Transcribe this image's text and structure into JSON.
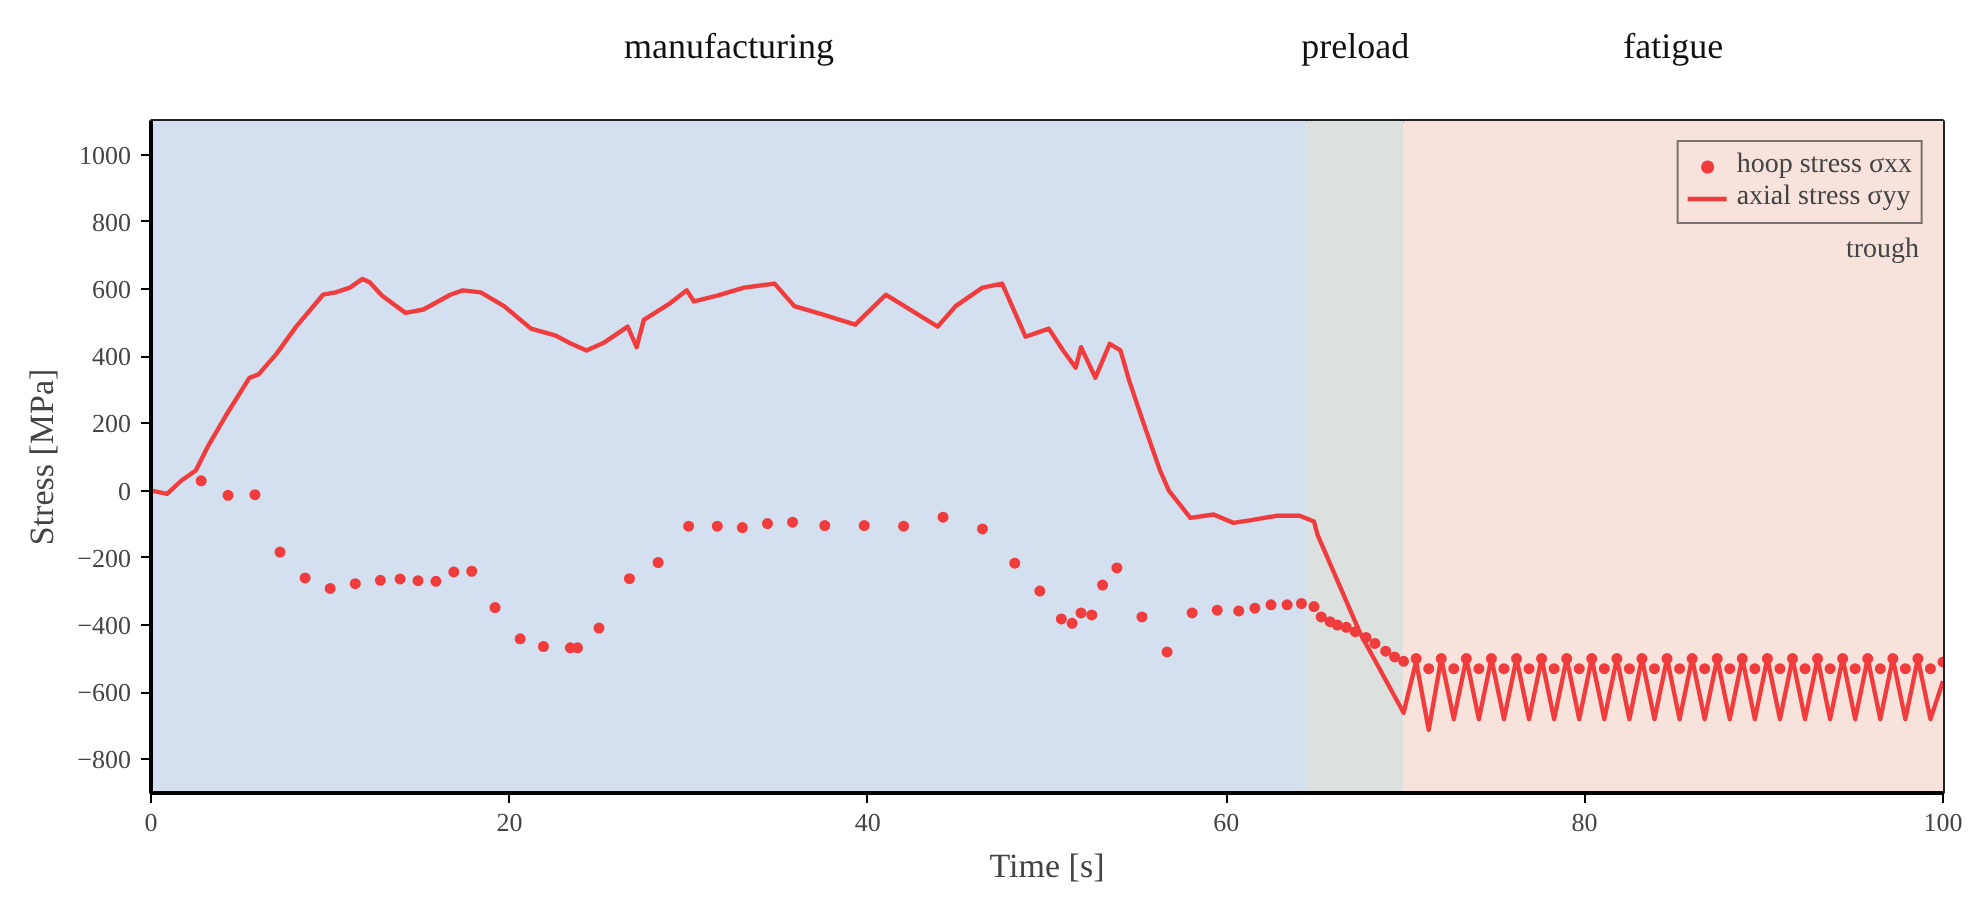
{
  "chart_data": {
    "type": "line",
    "xlabel": "Time [s]",
    "ylabel": "Stress [MPa]",
    "xlim": [
      0,
      100
    ],
    "xticks": [
      0,
      20,
      40,
      60,
      80,
      100
    ],
    "ylim": [
      -900,
      1100
    ],
    "yticks": [
      -800,
      -600,
      -400,
      -200,
      0,
      200,
      400,
      600,
      800,
      1000
    ],
    "grid": false,
    "legend": "top right",
    "annotations": [
      "trough"
    ],
    "bands": [
      {
        "axis": "x",
        "from": 0,
        "to": 64.5,
        "label": "manufacturing",
        "color": "#d4dff0"
      },
      {
        "axis": "x",
        "from": 64.5,
        "to": 69.9,
        "label": "preload",
        "color": "#dce1e0"
      },
      {
        "axis": "x",
        "from": 69.9,
        "to": 100,
        "label": "fatigue",
        "color": "#f8e2dc"
      }
    ],
    "series": [
      {
        "name": "hoop stress σxx",
        "type": "scatter",
        "marker": "circle",
        "color": "#f03c3c",
        "x": [
          2.8,
          4.3,
          5.8,
          7.2,
          8.6,
          10.0,
          11.4,
          12.8,
          13.9,
          14.9,
          15.9,
          16.9,
          17.9,
          19.2,
          20.6,
          21.9,
          23.4,
          23.8,
          25.0,
          26.7,
          28.3,
          30.0,
          31.6,
          33.0,
          34.4,
          35.8,
          37.6,
          39.8,
          42.0,
          44.2,
          46.4,
          48.2,
          49.6,
          50.8,
          51.4,
          51.9,
          52.5,
          53.1,
          53.9,
          55.3,
          56.7,
          58.1,
          59.5,
          60.7,
          61.6,
          62.5,
          63.4,
          64.2,
          64.9,
          65.3,
          65.8,
          66.2,
          66.7,
          67.2,
          67.8,
          68.3,
          68.9,
          69.4,
          69.9,
          70.6,
          71.3,
          72.0,
          72.7,
          73.4,
          74.1,
          74.8,
          75.5,
          76.2,
          76.9,
          77.6,
          78.3,
          79.0,
          79.7,
          80.4,
          81.1,
          81.8,
          82.5,
          83.2,
          83.9,
          84.6,
          85.3,
          86.0,
          86.7,
          87.4,
          88.1,
          88.8,
          89.5,
          90.2,
          90.9,
          91.6,
          92.3,
          93.0,
          93.7,
          94.4,
          95.1,
          95.8,
          96.5,
          97.2,
          97.9,
          98.6,
          99.3,
          100
        ],
        "values": [
          29,
          -14,
          -12,
          -183,
          -260,
          -291,
          -277,
          -267,
          -263,
          -268,
          -270,
          -242,
          -240,
          -348,
          -441,
          -464,
          -468,
          -468,
          -409,
          -262,
          -214,
          -106,
          -106,
          -110,
          -98,
          -94,
          -104,
          -104,
          -106,
          -79,
          -114,
          -216,
          -299,
          -382,
          -395,
          -364,
          -370,
          -281,
          -230,
          -376,
          -480,
          -364,
          -356,
          -358,
          -350,
          -340,
          -340,
          -336,
          -345,
          -376,
          -390,
          -400,
          -407,
          -420,
          -437,
          -455,
          -478,
          -495,
          -508,
          -500,
          -530,
          -500,
          -530,
          -500,
          -530,
          -500,
          -530,
          -500,
          -530,
          -500,
          -530,
          -500,
          -530,
          -500,
          -530,
          -500,
          -530,
          -500,
          -530,
          -500,
          -530,
          -500,
          -530,
          -500,
          -530,
          -500,
          -530,
          -500,
          -530,
          -500,
          -530,
          -500,
          -530,
          -500,
          -530,
          -500,
          -530,
          -500,
          -530,
          -500,
          -530,
          -510
        ]
      },
      {
        "name": "axial stress σyy",
        "line_style": "solid",
        "color": "#f03c3c",
        "x": [
          0,
          0.9,
          1.7,
          2.5,
          3.2,
          4.3,
          5.5,
          6.0,
          7.0,
          8.1,
          9.6,
          10.3,
          11.1,
          11.8,
          12.2,
          12.9,
          14.2,
          15.2,
          16.7,
          17.4,
          18.4,
          19.7,
          21.2,
          22.6,
          23.3,
          24.3,
          25.3,
          26.6,
          27.1,
          27.5,
          29.0,
          29.9,
          30.3,
          31.6,
          33.1,
          34.8,
          35.9,
          37.6,
          39.3,
          41.0,
          43.9,
          44.9,
          46.4,
          47.5,
          48.8,
          50.1,
          50.9,
          51.6,
          51.9,
          52.7,
          53.5,
          54.1,
          54.6,
          55.5,
          56.3,
          56.8,
          58.0,
          59.3,
          60.4,
          61.4,
          62.8,
          64.1,
          64.9,
          65.1,
          67.5,
          69.9,
          70.6,
          71.3,
          72.0,
          72.7,
          73.4,
          74.1,
          74.8,
          75.5,
          76.2,
          76.9,
          77.6,
          78.3,
          79.0,
          79.7,
          80.4,
          81.1,
          81.8,
          82.5,
          83.2,
          83.9,
          84.6,
          85.3,
          86.0,
          86.7,
          87.4,
          88.1,
          88.8,
          89.5,
          90.2,
          90.9,
          91.6,
          92.3,
          93.0,
          93.7,
          94.4,
          95.1,
          95.8,
          96.5,
          97.2,
          97.9,
          98.6,
          99.3,
          100
        ],
        "values": [
          0,
          -10,
          30,
          60,
          134,
          234,
          336,
          346,
          407,
          488,
          583,
          590,
          604,
          630,
          620,
          580,
          529,
          539,
          583,
          596,
          590,
          549,
          482,
          461,
          441,
          417,
          441,
          488,
          427,
          508,
          559,
          596,
          563,
          580,
          604,
          616,
          549,
          522,
          494,
          583,
          488,
          549,
          604,
          616,
          458,
          482,
          417,
          366,
          427,
          336,
          437,
          417,
          325,
          183,
          61,
          0,
          -81,
          -71,
          -96,
          -88,
          -75,
          -75,
          -92,
          -132,
          -427,
          -661,
          -508,
          -712,
          -500,
          -680,
          -500,
          -680,
          -500,
          -680,
          -500,
          -680,
          -500,
          -680,
          -500,
          -680,
          -500,
          -680,
          -500,
          -680,
          -500,
          -680,
          -500,
          -680,
          -500,
          -680,
          -500,
          -680,
          -500,
          -680,
          -500,
          -680,
          -500,
          -680,
          -500,
          -680,
          -500,
          -680,
          -500,
          -680,
          -500,
          -680,
          -500,
          -680,
          -567
        ]
      }
    ]
  }
}
